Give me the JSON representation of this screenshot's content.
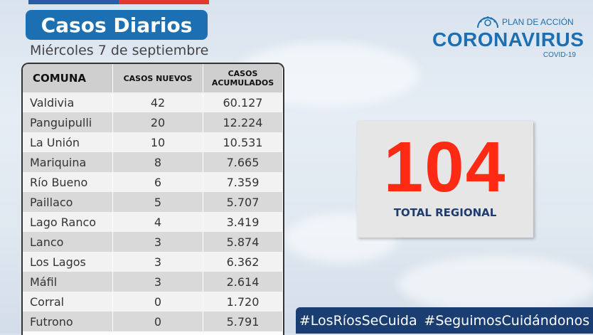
{
  "header": {
    "title": "Casos Diarios",
    "date": "Miércoles 7 de septiembre"
  },
  "logo": {
    "plan": "PLAN DE ACCIÓN",
    "name": "CORONAVIRUS",
    "sub": "COVID-19",
    "icon": "virus-icon"
  },
  "table": {
    "headers": [
      "COMUNA",
      "CASOS NUEVOS",
      "CASOS ACUMULADOS"
    ],
    "rows": [
      {
        "comuna": "Valdivia",
        "nuevos": "42",
        "acumulados": "60.127"
      },
      {
        "comuna": "Panguipulli",
        "nuevos": "20",
        "acumulados": "12.224"
      },
      {
        "comuna": "La Unión",
        "nuevos": "10",
        "acumulados": "10.531"
      },
      {
        "comuna": "Mariquina",
        "nuevos": "8",
        "acumulados": "7.665"
      },
      {
        "comuna": "Río Bueno",
        "nuevos": "6",
        "acumulados": "7.359"
      },
      {
        "comuna": "Paillaco",
        "nuevos": "5",
        "acumulados": "5.707"
      },
      {
        "comuna": "Lago Ranco",
        "nuevos": "4",
        "acumulados": "3.419"
      },
      {
        "comuna": "Lanco",
        "nuevos": "3",
        "acumulados": "5.874"
      },
      {
        "comuna": "Los Lagos",
        "nuevos": "3",
        "acumulados": "6.362"
      },
      {
        "comuna": "Máfil",
        "nuevos": "3",
        "acumulados": "2.614"
      },
      {
        "comuna": "Corral",
        "nuevos": "0",
        "acumulados": "1.720"
      },
      {
        "comuna": "Futrono",
        "nuevos": "0",
        "acumulados": "5.791"
      }
    ]
  },
  "total": {
    "value": "104",
    "label": "TOTAL REGIONAL"
  },
  "hashtags": [
    "#LosRíosSeCuida",
    "#SeguimosCuidándonos"
  ],
  "colors": {
    "title_bg": "#1c6fb0",
    "total_number": "#ff2a14",
    "hashtag_bg": "#1a3d72"
  }
}
